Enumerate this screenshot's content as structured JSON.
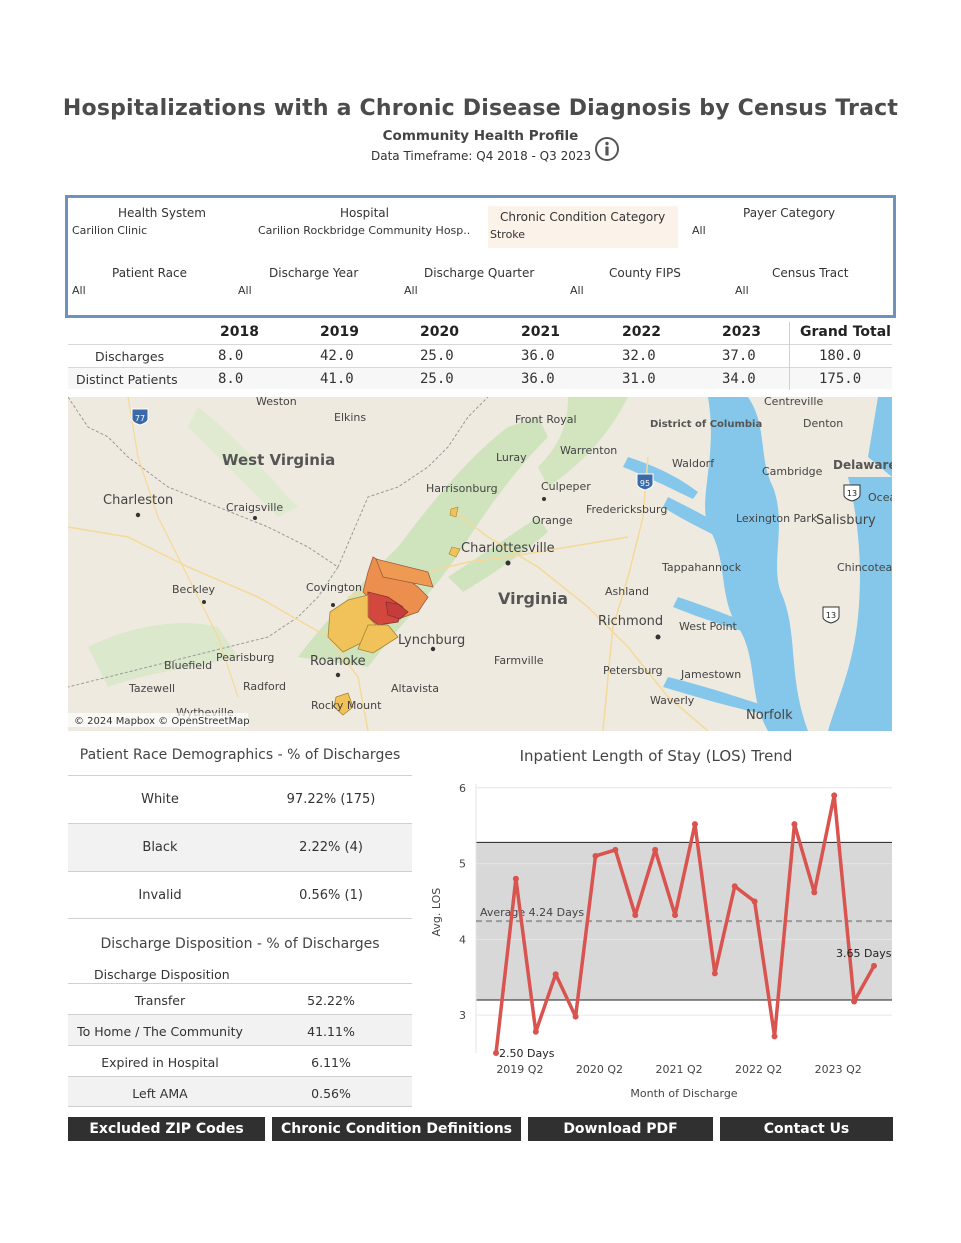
{
  "header": {
    "title": "Hospitalizations with a Chronic Disease Diagnosis by Census Tract",
    "subtitle": "Community Health Profile",
    "timeframe": "Data Timeframe: Q4 2018 - Q3 2023"
  },
  "filters": {
    "health_system": {
      "label": "Health System",
      "value": "Carilion Clinic"
    },
    "hospital": {
      "label": "Hospital",
      "value": "Carilion Rockbridge Community Hosp.."
    },
    "chronic_condition": {
      "label": "Chronic Condition Category",
      "value": "Stroke"
    },
    "payer_category": {
      "label": "Payer Category",
      "value": "All"
    },
    "patient_race": {
      "label": "Patient Race",
      "value": "All"
    },
    "discharge_year": {
      "label": "Discharge Year",
      "value": "All"
    },
    "discharge_quarter": {
      "label": "Discharge Quarter",
      "value": "All"
    },
    "county_fips": {
      "label": "County FIPS",
      "value": "All"
    },
    "census_tract": {
      "label": "Census Tract",
      "value": "All"
    }
  },
  "summary": {
    "columns": [
      "2018",
      "2019",
      "2020",
      "2021",
      "2022",
      "2023",
      "Grand Total"
    ],
    "rows": [
      {
        "label": "Discharges",
        "values": [
          "8.0",
          "42.0",
          "25.0",
          "36.0",
          "32.0",
          "37.0",
          "180.0"
        ]
      },
      {
        "label": "Distinct Patients",
        "values": [
          "8.0",
          "41.0",
          "25.0",
          "36.0",
          "31.0",
          "34.0",
          "175.0"
        ]
      }
    ]
  },
  "map": {
    "attribution": "© 2024 Mapbox © OpenStreetMap",
    "states": [
      "West Virginia",
      "Virginia",
      "District of Columbia",
      "Delaware"
    ],
    "cities": [
      "Weston",
      "Elkins",
      "Front Royal",
      "Centreville",
      "Denton",
      "Charleston",
      "Craigsville",
      "Harrisonburg",
      "Luray",
      "Warrenton",
      "Waldorf",
      "Cambridge",
      "Culpeper",
      "Fredericksburg",
      "Lexington Park",
      "Salisbury",
      "Orange",
      "Charlottesville",
      "Tappahannock",
      "Chincoteague",
      "Covington",
      "Beckley",
      "Ashland",
      "Richmond",
      "Bluefield",
      "Pearisburg",
      "Roanoke",
      "Lynchburg",
      "West Point",
      "Farmville",
      "Petersburg",
      "Tazewell",
      "Radford",
      "Altavista",
      "Jamestown",
      "Waverly",
      "Rocky Mount",
      "Norfolk",
      "Wytheville",
      "Ocean City"
    ],
    "highways": [
      "77",
      "95",
      "13",
      "13"
    ],
    "colors": {
      "water": "#84c7ea",
      "land": "#efeadf",
      "forest": "#cfe3bd",
      "tract_dark": "#d2473e",
      "tract_mid": "#ec8f4e",
      "tract_light": "#f2c25a"
    }
  },
  "race": {
    "title": "Patient Race Demographics - % of Discharges",
    "rows": [
      {
        "label": "White",
        "value": "97.22% (175)"
      },
      {
        "label": "Black",
        "value": "2.22% (4)"
      },
      {
        "label": "Invalid",
        "value": "0.56% (1)"
      }
    ]
  },
  "disposition": {
    "title": "Discharge Disposition - % of Discharges",
    "column_header": "Discharge Disposition",
    "rows": [
      {
        "label": "Transfer",
        "value": "52.22%"
      },
      {
        "label": "To Home / The Community",
        "value": "41.11%"
      },
      {
        "label": "Expired in Hospital",
        "value": "6.11%"
      },
      {
        "label": "Left AMA",
        "value": "0.56%"
      }
    ]
  },
  "chart_data": {
    "type": "line",
    "title": "Inpatient Length of Stay (LOS) Trend",
    "xlabel": "Month of Discharge",
    "ylabel": "Avg. LOS",
    "ylim": [
      2.5,
      6.05
    ],
    "yticks": [
      3,
      4,
      5,
      6
    ],
    "xtick_labels": [
      "2019 Q2",
      "2020 Q2",
      "2021 Q2",
      "2022 Q2",
      "2023 Q2"
    ],
    "band": [
      3.2,
      5.28
    ],
    "average": 4.24,
    "average_label": "Average 4.24 Days",
    "start_label": "2.50 Days",
    "end_label": "3.65 Days",
    "series": [
      {
        "values": [
          2.5,
          4.8,
          2.78,
          3.54,
          2.98,
          5.1,
          5.18,
          4.32,
          5.18,
          4.32,
          5.52,
          3.55,
          4.7,
          4.5,
          2.72,
          5.52,
          4.62,
          5.9,
          3.18,
          3.65
        ]
      }
    ],
    "color": "#d9534f",
    "band_color": "#d8d8d8"
  },
  "buttons": {
    "excluded_zip": "Excluded ZIP Codes",
    "definitions": "Chronic Condition Definitions",
    "download_pdf": "Download PDF",
    "contact": "Contact Us"
  }
}
